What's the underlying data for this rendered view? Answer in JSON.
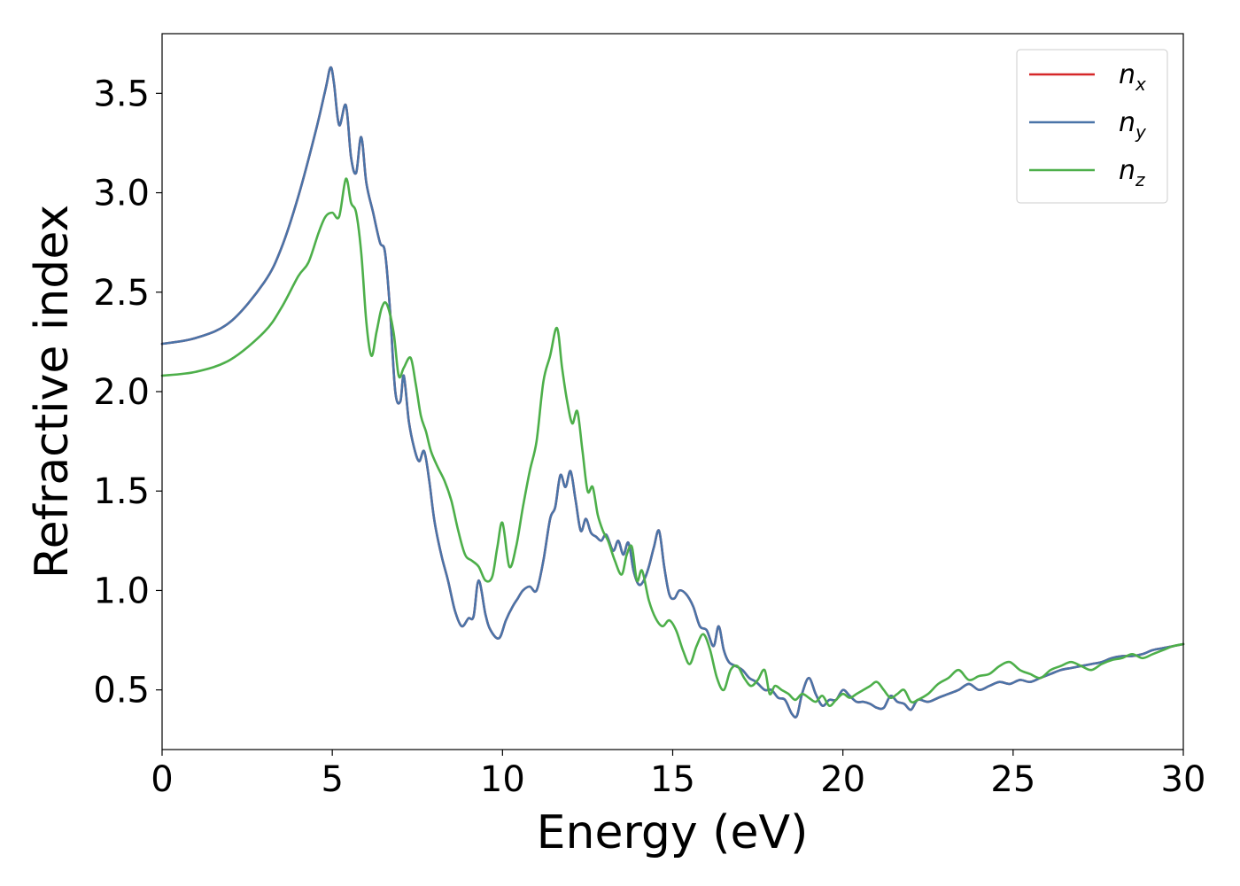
{
  "chart_data": {
    "type": "line",
    "title": "",
    "xlabel": "Energy (eV)",
    "ylabel": "Refractive index",
    "xlim": [
      0,
      30
    ],
    "ylim": [
      0.2,
      3.8
    ],
    "xticks": [
      0,
      5,
      10,
      15,
      20,
      25,
      30
    ],
    "xtick_labels": [
      "0",
      "5",
      "10",
      "15",
      "20",
      "25",
      "30"
    ],
    "yticks": [
      0.5,
      1.0,
      1.5,
      2.0,
      2.5,
      3.0,
      3.5
    ],
    "ytick_labels": [
      "0.5",
      "1.0",
      "1.5",
      "2.0",
      "2.5",
      "3.0",
      "3.5"
    ],
    "grid": false,
    "legend_position": "top-right",
    "series": [
      {
        "name": "n_x",
        "label_base": "n",
        "label_sub": "x",
        "color": "#d62728",
        "x": [
          0,
          1,
          2,
          3,
          3.5,
          4,
          4.5,
          4.8,
          4.95,
          5.05,
          5.2,
          5.4,
          5.55,
          5.7,
          5.85,
          6.0,
          6.2,
          6.4,
          6.55,
          6.7,
          6.85,
          7.0,
          7.1,
          7.25,
          7.4,
          7.55,
          7.7,
          7.85,
          8.0,
          8.2,
          8.4,
          8.6,
          8.8,
          9.0,
          9.15,
          9.3,
          9.5,
          9.65,
          9.9,
          10.1,
          10.3,
          10.45,
          10.6,
          10.8,
          11.0,
          11.2,
          11.4,
          11.55,
          11.7,
          11.85,
          12.0,
          12.15,
          12.3,
          12.45,
          12.6,
          12.75,
          12.9,
          13.05,
          13.25,
          13.4,
          13.55,
          13.7,
          13.85,
          14.0,
          14.15,
          14.3,
          14.45,
          14.6,
          14.75,
          14.9,
          15.05,
          15.2,
          15.4,
          15.6,
          15.8,
          16.0,
          16.2,
          16.35,
          16.5,
          16.65,
          16.85,
          17.05,
          17.25,
          17.45,
          17.7,
          17.9,
          18.1,
          18.3,
          18.5,
          18.65,
          18.8,
          19.0,
          19.2,
          19.4,
          19.6,
          19.8,
          20.0,
          20.2,
          20.4,
          20.6,
          20.8,
          21.0,
          21.2,
          21.4,
          21.6,
          21.8,
          22.0,
          22.2,
          22.5,
          22.8,
          23.1,
          23.4,
          23.7,
          24.0,
          24.3,
          24.6,
          24.9,
          25.2,
          25.5,
          25.8,
          26.1,
          26.4,
          26.7,
          27.0,
          27.3,
          27.6,
          27.9,
          28.2,
          28.5,
          28.8,
          29.1,
          29.4,
          29.7,
          30.0
        ],
        "y": [
          2.24,
          2.27,
          2.35,
          2.55,
          2.72,
          2.98,
          3.3,
          3.52,
          3.63,
          3.55,
          3.34,
          3.44,
          3.18,
          3.1,
          3.28,
          3.05,
          2.9,
          2.75,
          2.7,
          2.4,
          2.0,
          1.95,
          2.08,
          1.85,
          1.72,
          1.65,
          1.7,
          1.55,
          1.35,
          1.18,
          1.05,
          0.9,
          0.82,
          0.86,
          0.87,
          1.05,
          0.88,
          0.8,
          0.76,
          0.85,
          0.92,
          0.96,
          1.0,
          1.02,
          1.0,
          1.15,
          1.36,
          1.42,
          1.58,
          1.52,
          1.6,
          1.45,
          1.3,
          1.36,
          1.29,
          1.27,
          1.25,
          1.28,
          1.2,
          1.25,
          1.18,
          1.24,
          1.1,
          1.03,
          1.05,
          1.12,
          1.22,
          1.3,
          1.12,
          0.98,
          0.96,
          1.0,
          0.98,
          0.92,
          0.82,
          0.8,
          0.72,
          0.82,
          0.7,
          0.64,
          0.62,
          0.6,
          0.56,
          0.54,
          0.5,
          0.5,
          0.46,
          0.45,
          0.38,
          0.37,
          0.48,
          0.56,
          0.48,
          0.42,
          0.45,
          0.45,
          0.5,
          0.47,
          0.44,
          0.44,
          0.43,
          0.41,
          0.41,
          0.47,
          0.44,
          0.43,
          0.4,
          0.45,
          0.44,
          0.46,
          0.48,
          0.5,
          0.53,
          0.5,
          0.52,
          0.54,
          0.53,
          0.55,
          0.54,
          0.56,
          0.58,
          0.6,
          0.61,
          0.62,
          0.63,
          0.64,
          0.66,
          0.67,
          0.67,
          0.68,
          0.7,
          0.71,
          0.72,
          0.73
        ]
      },
      {
        "name": "n_y",
        "label_base": "n",
        "label_sub": "y",
        "color": "#4a74a8",
        "x": [
          0,
          1,
          2,
          3,
          3.5,
          4,
          4.5,
          4.8,
          4.95,
          5.05,
          5.2,
          5.4,
          5.55,
          5.7,
          5.85,
          6.0,
          6.2,
          6.4,
          6.55,
          6.7,
          6.85,
          7.0,
          7.1,
          7.25,
          7.4,
          7.55,
          7.7,
          7.85,
          8.0,
          8.2,
          8.4,
          8.6,
          8.8,
          9.0,
          9.15,
          9.3,
          9.5,
          9.65,
          9.9,
          10.1,
          10.3,
          10.45,
          10.6,
          10.8,
          11.0,
          11.2,
          11.4,
          11.55,
          11.7,
          11.85,
          12.0,
          12.15,
          12.3,
          12.45,
          12.6,
          12.75,
          12.9,
          13.05,
          13.25,
          13.4,
          13.55,
          13.7,
          13.85,
          14.0,
          14.15,
          14.3,
          14.45,
          14.6,
          14.75,
          14.9,
          15.05,
          15.2,
          15.4,
          15.6,
          15.8,
          16.0,
          16.2,
          16.35,
          16.5,
          16.65,
          16.85,
          17.05,
          17.25,
          17.45,
          17.7,
          17.9,
          18.1,
          18.3,
          18.5,
          18.65,
          18.8,
          19.0,
          19.2,
          19.4,
          19.6,
          19.8,
          20.0,
          20.2,
          20.4,
          20.6,
          20.8,
          21.0,
          21.2,
          21.4,
          21.6,
          21.8,
          22.0,
          22.2,
          22.5,
          22.8,
          23.1,
          23.4,
          23.7,
          24.0,
          24.3,
          24.6,
          24.9,
          25.2,
          25.5,
          25.8,
          26.1,
          26.4,
          26.7,
          27.0,
          27.3,
          27.6,
          27.9,
          28.2,
          28.5,
          28.8,
          29.1,
          29.4,
          29.7,
          30.0
        ],
        "y": [
          2.24,
          2.27,
          2.35,
          2.55,
          2.72,
          2.98,
          3.3,
          3.52,
          3.63,
          3.55,
          3.34,
          3.44,
          3.18,
          3.1,
          3.28,
          3.05,
          2.9,
          2.75,
          2.7,
          2.4,
          2.0,
          1.95,
          2.08,
          1.85,
          1.72,
          1.65,
          1.7,
          1.55,
          1.35,
          1.18,
          1.05,
          0.9,
          0.82,
          0.86,
          0.87,
          1.05,
          0.88,
          0.8,
          0.76,
          0.85,
          0.92,
          0.96,
          1.0,
          1.02,
          1.0,
          1.15,
          1.36,
          1.42,
          1.58,
          1.52,
          1.6,
          1.45,
          1.3,
          1.36,
          1.29,
          1.27,
          1.25,
          1.28,
          1.2,
          1.25,
          1.18,
          1.24,
          1.1,
          1.03,
          1.05,
          1.12,
          1.22,
          1.3,
          1.12,
          0.98,
          0.96,
          1.0,
          0.98,
          0.92,
          0.82,
          0.8,
          0.72,
          0.82,
          0.7,
          0.64,
          0.62,
          0.6,
          0.56,
          0.54,
          0.5,
          0.5,
          0.46,
          0.45,
          0.38,
          0.37,
          0.48,
          0.56,
          0.48,
          0.42,
          0.45,
          0.45,
          0.5,
          0.47,
          0.44,
          0.44,
          0.43,
          0.41,
          0.41,
          0.47,
          0.44,
          0.43,
          0.4,
          0.45,
          0.44,
          0.46,
          0.48,
          0.5,
          0.53,
          0.5,
          0.52,
          0.54,
          0.53,
          0.55,
          0.54,
          0.56,
          0.58,
          0.6,
          0.61,
          0.62,
          0.63,
          0.64,
          0.66,
          0.67,
          0.67,
          0.68,
          0.7,
          0.71,
          0.72,
          0.73
        ]
      },
      {
        "name": "n_z",
        "label_base": "n",
        "label_sub": "z",
        "color": "#4daf4a",
        "x": [
          0,
          1,
          2,
          3,
          3.5,
          4,
          4.3,
          4.6,
          4.8,
          5.0,
          5.2,
          5.4,
          5.55,
          5.7,
          5.85,
          6.0,
          6.15,
          6.3,
          6.45,
          6.6,
          6.8,
          6.95,
          7.1,
          7.3,
          7.45,
          7.6,
          7.75,
          7.9,
          8.1,
          8.3,
          8.5,
          8.7,
          8.9,
          9.1,
          9.3,
          9.5,
          9.7,
          9.85,
          10.0,
          10.2,
          10.4,
          10.6,
          10.8,
          11.0,
          11.2,
          11.4,
          11.6,
          11.75,
          11.9,
          12.05,
          12.2,
          12.35,
          12.5,
          12.65,
          12.8,
          12.95,
          13.1,
          13.3,
          13.5,
          13.65,
          13.8,
          13.95,
          14.1,
          14.3,
          14.5,
          14.7,
          14.9,
          15.1,
          15.3,
          15.5,
          15.7,
          15.9,
          16.1,
          16.3,
          16.5,
          16.7,
          16.9,
          17.1,
          17.3,
          17.5,
          17.7,
          17.85,
          18.0,
          18.2,
          18.4,
          18.6,
          18.8,
          19.0,
          19.2,
          19.4,
          19.6,
          19.8,
          20.0,
          20.2,
          20.4,
          20.6,
          20.8,
          21.0,
          21.2,
          21.4,
          21.6,
          21.8,
          22.0,
          22.2,
          22.5,
          22.8,
          23.1,
          23.4,
          23.7,
          24.0,
          24.3,
          24.6,
          24.9,
          25.2,
          25.5,
          25.8,
          26.1,
          26.4,
          26.7,
          27.0,
          27.3,
          27.6,
          27.9,
          28.2,
          28.5,
          28.8,
          29.1,
          29.4,
          29.7,
          30.0
        ],
        "y": [
          2.08,
          2.1,
          2.16,
          2.3,
          2.42,
          2.58,
          2.65,
          2.8,
          2.88,
          2.9,
          2.88,
          3.07,
          2.95,
          2.9,
          2.7,
          2.35,
          2.18,
          2.3,
          2.42,
          2.44,
          2.3,
          2.08,
          2.12,
          2.17,
          2.04,
          1.88,
          1.8,
          1.7,
          1.62,
          1.55,
          1.45,
          1.3,
          1.18,
          1.15,
          1.12,
          1.05,
          1.07,
          1.22,
          1.34,
          1.12,
          1.22,
          1.42,
          1.6,
          1.75,
          2.05,
          2.18,
          2.32,
          2.12,
          1.95,
          1.84,
          1.9,
          1.7,
          1.5,
          1.52,
          1.38,
          1.3,
          1.25,
          1.15,
          1.08,
          1.18,
          1.22,
          1.05,
          1.1,
          0.95,
          0.86,
          0.82,
          0.85,
          0.8,
          0.7,
          0.63,
          0.72,
          0.78,
          0.7,
          0.56,
          0.5,
          0.6,
          0.62,
          0.56,
          0.52,
          0.55,
          0.6,
          0.48,
          0.52,
          0.5,
          0.48,
          0.45,
          0.48,
          0.46,
          0.44,
          0.47,
          0.42,
          0.45,
          0.48,
          0.46,
          0.48,
          0.5,
          0.52,
          0.54,
          0.5,
          0.46,
          0.48,
          0.5,
          0.44,
          0.45,
          0.48,
          0.53,
          0.56,
          0.6,
          0.55,
          0.57,
          0.58,
          0.62,
          0.64,
          0.6,
          0.58,
          0.56,
          0.6,
          0.62,
          0.64,
          0.62,
          0.6,
          0.63,
          0.65,
          0.66,
          0.68,
          0.66,
          0.68,
          0.7,
          0.72,
          0.73
        ]
      }
    ]
  }
}
